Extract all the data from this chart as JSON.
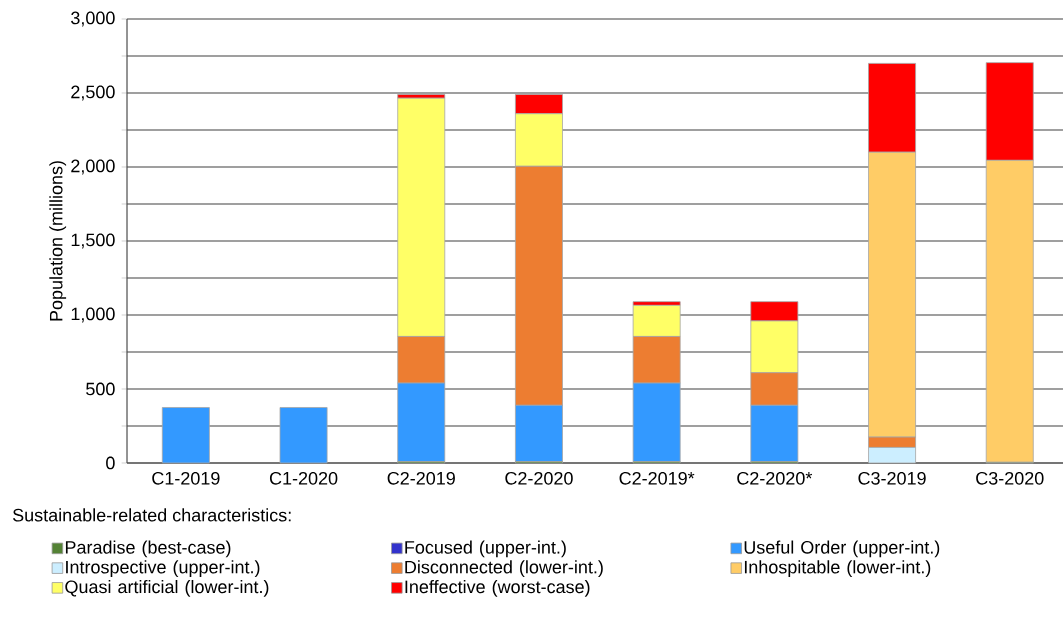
{
  "chart_data": {
    "type": "bar",
    "stacked": true,
    "ylabel": "Population (millions)",
    "legend_title": "Sustainable-related characteristics:",
    "categories": [
      "C1-2019",
      "C1-2020",
      "C2-2019",
      "C2-2020",
      "C2-2019*",
      "C2-2020*",
      "C3-2019",
      "C3-2020"
    ],
    "series": [
      {
        "name": "Paradise (best-case)",
        "color": "#548235",
        "values": [
          0,
          0,
          10,
          10,
          10,
          10,
          0,
          5
        ]
      },
      {
        "name": "Focused (upper-int.)",
        "color": "#3333cc",
        "values": [
          0,
          0,
          0,
          0,
          0,
          0,
          0,
          0
        ]
      },
      {
        "name": "Useful Order (upper-int.)",
        "color": "#3399ff",
        "values": [
          375,
          375,
          530,
          380,
          530,
          380,
          0,
          0
        ]
      },
      {
        "name": "Introspective (upper-int.)",
        "color": "#cceeff",
        "values": [
          0,
          0,
          0,
          0,
          0,
          0,
          105,
          0
        ]
      },
      {
        "name": "Disconnected (lower-int.)",
        "color": "#ed7d31",
        "values": [
          0,
          0,
          315,
          1615,
          315,
          220,
          70,
          0
        ]
      },
      {
        "name": "Inhospitable (lower-int.)",
        "color": "#ffcc66",
        "values": [
          0,
          0,
          0,
          0,
          0,
          0,
          1925,
          2040
        ]
      },
      {
        "name": "Quasi artificial (lower-int.)",
        "color": "#ffff66",
        "values": [
          0,
          0,
          1610,
          355,
          210,
          350,
          0,
          0
        ]
      },
      {
        "name": "Ineffective (worst-case)",
        "color": "#ff0000",
        "values": [
          0,
          0,
          25,
          130,
          25,
          130,
          600,
          660
        ]
      }
    ],
    "ylim": [
      0,
      3000
    ],
    "yticks": [
      0,
      {
        "value": 250,
        "label": null
      },
      500,
      {
        "value": 750,
        "label": null
      },
      {
        "value": 1000,
        "label": "1,000"
      },
      {
        "value": 1250,
        "label": null
      },
      {
        "value": 1500,
        "label": "1,500"
      },
      {
        "value": 1750,
        "label": null
      },
      {
        "value": 2000,
        "label": "2,000"
      },
      {
        "value": 2250,
        "label": null
      },
      {
        "value": 2500,
        "label": "2,500"
      },
      {
        "value": 2750,
        "label": null
      },
      {
        "value": 3000,
        "label": "3,000"
      }
    ],
    "grid": "y",
    "legend": "bottom"
  }
}
